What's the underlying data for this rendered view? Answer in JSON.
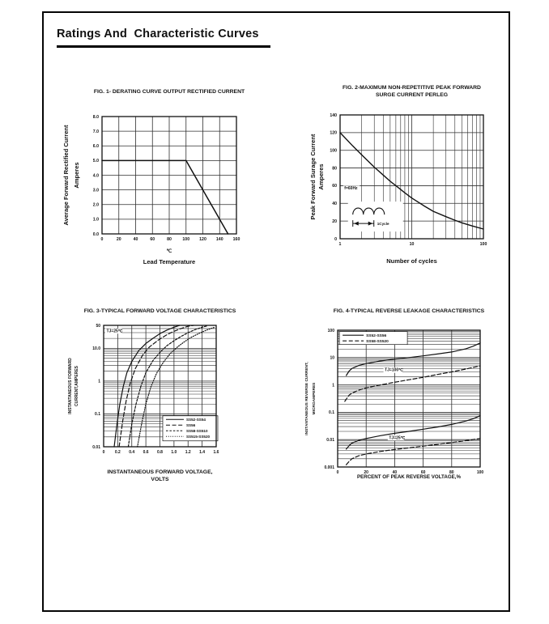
{
  "page": {
    "title": "Ratings And  Characteristic Curves"
  },
  "colors": {
    "ink": "#111111",
    "grid": "#2f2f2f",
    "paper": "#ffffff"
  },
  "chart_data": [
    {
      "id": "fig1",
      "type": "line",
      "title_lines": [
        "FIG. 1- DERATING CURVE OUTPUT RECTIFIED CURRENT"
      ],
      "ylabel_lines": [
        "Average Forward Rectified Current",
        "Amperes"
      ],
      "xlabel_lines": [
        "℃",
        "Lead Temperature"
      ],
      "x": {
        "scale": "linear",
        "min": 0,
        "max": 160,
        "tick_vals": [
          0,
          20,
          40,
          60,
          80,
          100,
          120,
          140,
          160
        ],
        "tick_labels": [
          "0",
          "20",
          "40",
          "60",
          "80",
          "100",
          "120",
          "140",
          "160"
        ]
      },
      "y": {
        "scale": "linear",
        "min": 0,
        "max": 8,
        "tick_vals": [
          0,
          1,
          2,
          3,
          4,
          5,
          6,
          7,
          8
        ],
        "tick_labels": [
          "0.0",
          "1.0",
          "2.0",
          "3.0",
          "4.0",
          "5.0",
          "6.0",
          "7.0",
          "8.0"
        ]
      },
      "series": [
        {
          "name": "average-forward-current",
          "dash": "solid",
          "points": [
            [
              0,
              5
            ],
            [
              100,
              5
            ],
            [
              150,
              0
            ]
          ]
        }
      ],
      "annotations": [],
      "legend": null
    },
    {
      "id": "fig2",
      "type": "line",
      "title_lines": [
        "FIG. 2-MAXIMUM NON-REPETITIVE PEAK FORWARD",
        "SURGE CURRENT PERLEG"
      ],
      "ylabel_lines": [
        "Peak Forward Surage Current",
        "Amperes"
      ],
      "xlabel_lines": [
        "Number of cycles"
      ],
      "x": {
        "scale": "log",
        "min": 1,
        "max": 100,
        "tick_vals": [
          1,
          10,
          100
        ],
        "tick_labels": [
          "1",
          "10",
          "100"
        ]
      },
      "y": {
        "scale": "linear",
        "min": 0,
        "max": 140,
        "tick_vals": [
          0,
          20,
          40,
          60,
          80,
          100,
          120,
          140
        ],
        "tick_labels": [
          "0",
          "20",
          "40",
          "60",
          "80",
          "100",
          "120",
          "140"
        ]
      },
      "series": [
        {
          "name": "peak-surge-current",
          "dash": "solid",
          "points": [
            [
              1,
              120
            ],
            [
              1.5,
              105
            ],
            [
              2,
              95
            ],
            [
              3,
              81
            ],
            [
              4,
              72
            ],
            [
              5,
              65
            ],
            [
              6,
              60
            ],
            [
              8,
              52
            ],
            [
              10,
              46
            ],
            [
              15,
              37
            ],
            [
              20,
              31
            ],
            [
              30,
              25
            ],
            [
              40,
              21
            ],
            [
              50,
              18
            ],
            [
              70,
              14.5
            ],
            [
              100,
              11
            ]
          ]
        }
      ],
      "annotations": [
        {
          "type": "text",
          "text": "f=60Hz",
          "fx": 0.03,
          "fy": 0.6,
          "bg": true
        },
        {
          "type": "waveform",
          "label": "1Cycle",
          "fx": 0.055,
          "fy": 0.7
        }
      ],
      "legend": null
    },
    {
      "id": "fig3",
      "type": "line",
      "title_lines": [
        "FIG. 3-TYPICAL FORWARD VOLTAGE CHARACTERISTICS"
      ],
      "ylabel_lines": [
        "INSTANTANEOUS FORWARD",
        "CURRENT,AMPERES"
      ],
      "xlabel_lines": [
        "INSTANTANEOUS FORWARD VOLTAGE,",
        "VOLTS"
      ],
      "x": {
        "scale": "linear",
        "min": 0,
        "max": 1.6,
        "tick_vals": [
          0,
          0.2,
          0.4,
          0.6,
          0.8,
          1.0,
          1.2,
          1.4,
          1.6
        ],
        "tick_labels": [
          "0",
          "0.2",
          "0.4",
          "0.6",
          "0.8",
          "1.0",
          "1.2",
          "1.4",
          "1.6"
        ]
      },
      "y": {
        "scale": "log",
        "min": 0.01,
        "max": 50,
        "tick_vals": [
          0.01,
          0.1,
          1,
          10,
          50
        ],
        "tick_labels": [
          "0.01",
          "0.1",
          "1",
          "10.0",
          "50"
        ]
      },
      "series": [
        {
          "name": "SS52-SS54",
          "dash": "solid",
          "points": [
            [
              0.15,
              0.01
            ],
            [
              0.19,
              0.05
            ],
            [
              0.23,
              0.2
            ],
            [
              0.28,
              0.7
            ],
            [
              0.33,
              1.8
            ],
            [
              0.4,
              4
            ],
            [
              0.5,
              8.5
            ],
            [
              0.6,
              14
            ],
            [
              0.7,
              20
            ],
            [
              0.8,
              28
            ],
            [
              0.9,
              36
            ],
            [
              1.0,
              44
            ],
            [
              1.08,
              50
            ]
          ]
        },
        {
          "name": "SS56",
          "dash": "dash",
          "points": [
            [
              0.22,
              0.01
            ],
            [
              0.27,
              0.06
            ],
            [
              0.32,
              0.25
            ],
            [
              0.38,
              0.9
            ],
            [
              0.45,
              2.4
            ],
            [
              0.55,
              6
            ],
            [
              0.65,
              11
            ],
            [
              0.78,
              18
            ],
            [
              0.9,
              26
            ],
            [
              1.0,
              33
            ],
            [
              1.1,
              40
            ],
            [
              1.2,
              47
            ],
            [
              1.28,
              50
            ]
          ]
        },
        {
          "name": "SS58-SS510",
          "dash": "shortdash",
          "points": [
            [
              0.35,
              0.01
            ],
            [
              0.4,
              0.05
            ],
            [
              0.46,
              0.2
            ],
            [
              0.53,
              0.7
            ],
            [
              0.6,
              1.8
            ],
            [
              0.7,
              4.2
            ],
            [
              0.8,
              7.5
            ],
            [
              0.9,
              12
            ],
            [
              1.0,
              17
            ],
            [
              1.1,
              23
            ],
            [
              1.2,
              30
            ],
            [
              1.3,
              37
            ],
            [
              1.4,
              44
            ],
            [
              1.47,
              48
            ]
          ]
        },
        {
          "name": "SS515-SS520",
          "dash": "dot",
          "points": [
            [
              0.48,
              0.01
            ],
            [
              0.54,
              0.05
            ],
            [
              0.6,
              0.2
            ],
            [
              0.67,
              0.65
            ],
            [
              0.75,
              1.7
            ],
            [
              0.85,
              3.8
            ],
            [
              0.95,
              7
            ],
            [
              1.05,
              11
            ],
            [
              1.15,
              16
            ],
            [
              1.25,
              22
            ],
            [
              1.35,
              28
            ],
            [
              1.45,
              35
            ],
            [
              1.55,
              42
            ],
            [
              1.58,
              44
            ]
          ]
        }
      ],
      "annotations": [
        {
          "type": "text",
          "text": "TJ=25℃",
          "fx": 0.025,
          "fy": 0.055,
          "bg": true
        }
      ],
      "legend": {
        "fx": 0.525,
        "fy": 0.745,
        "items": [
          0,
          1,
          2,
          3
        ]
      }
    },
    {
      "id": "fig4",
      "type": "line",
      "title_lines": [
        "FIG. 4-TYPICAL REVERSE LEAKAGE CHARACTERISTICS"
      ],
      "ylabel_lines": [
        "INSTANTANEOUS REVERSE CURRENT,",
        "MICROAMPERES"
      ],
      "xlabel_lines": [
        "PERCENT OF PEAK REVERSE VOLTAGE,%"
      ],
      "x": {
        "scale": "linear",
        "min": 0,
        "max": 100,
        "tick_vals": [
          0,
          20,
          40,
          60,
          80,
          100
        ],
        "tick_labels": [
          "0",
          "20",
          "40",
          "60",
          "80",
          "100"
        ]
      },
      "y": {
        "scale": "log",
        "min": 0.001,
        "max": 100,
        "tick_vals": [
          0.001,
          0.01,
          0.1,
          1,
          10,
          100
        ],
        "tick_labels": [
          "0.001",
          "0.01",
          "0.1",
          "1",
          "10",
          "100"
        ]
      },
      "series": [
        {
          "name": "SS52-SS56",
          "condition": "TJ=100℃",
          "dash": "solid",
          "points": [
            [
              6,
              2.2
            ],
            [
              8,
              3.2
            ],
            [
              10,
              4
            ],
            [
              15,
              5.2
            ],
            [
              20,
              6
            ],
            [
              30,
              7.5
            ],
            [
              40,
              8.8
            ],
            [
              50,
              10
            ],
            [
              60,
              11.5
            ],
            [
              70,
              13.5
            ],
            [
              80,
              16
            ],
            [
              90,
              21
            ],
            [
              95,
              26
            ],
            [
              100,
              34
            ]
          ]
        },
        {
          "name": "SS58-SS520",
          "condition": "TJ=100℃",
          "dash": "dash",
          "points": [
            [
              5,
              0.25
            ],
            [
              8,
              0.42
            ],
            [
              10,
              0.5
            ],
            [
              15,
              0.65
            ],
            [
              20,
              0.78
            ],
            [
              30,
              1
            ],
            [
              40,
              1.25
            ],
            [
              50,
              1.55
            ],
            [
              60,
              1.9
            ],
            [
              70,
              2.4
            ],
            [
              80,
              3
            ],
            [
              90,
              3.8
            ],
            [
              100,
              5
            ]
          ]
        },
        {
          "name": "SS52-SS56",
          "condition": "TJ=25℃",
          "dash": "solid",
          "points": [
            [
              6,
              0.0045
            ],
            [
              8,
              0.006
            ],
            [
              10,
              0.0075
            ],
            [
              15,
              0.0095
            ],
            [
              20,
              0.011
            ],
            [
              30,
              0.014
            ],
            [
              40,
              0.017
            ],
            [
              50,
              0.02
            ],
            [
              60,
              0.024
            ],
            [
              70,
              0.029
            ],
            [
              80,
              0.036
            ],
            [
              90,
              0.048
            ],
            [
              95,
              0.058
            ],
            [
              100,
              0.075
            ]
          ]
        },
        {
          "name": "SS58-SS520",
          "condition": "TJ=25℃",
          "dash": "dash",
          "points": [
            [
              6,
              0.0012
            ],
            [
              8,
              0.0016
            ],
            [
              10,
              0.002
            ],
            [
              15,
              0.0026
            ],
            [
              20,
              0.003
            ],
            [
              30,
              0.0037
            ],
            [
              40,
              0.0044
            ],
            [
              50,
              0.005
            ],
            [
              60,
              0.0058
            ],
            [
              70,
              0.0067
            ],
            [
              80,
              0.0078
            ],
            [
              90,
              0.0092
            ],
            [
              100,
              0.011
            ]
          ]
        }
      ],
      "annotations": [
        {
          "type": "text",
          "text": "TJ=100℃",
          "fx": 0.33,
          "fy": 0.3,
          "bg": true
        },
        {
          "type": "text",
          "text": "TJ=25℃",
          "fx": 0.36,
          "fy": 0.795,
          "bg": true
        }
      ],
      "legend": {
        "fx": 0.012,
        "fy": 0.01,
        "items": [
          0,
          1
        ]
      }
    }
  ]
}
